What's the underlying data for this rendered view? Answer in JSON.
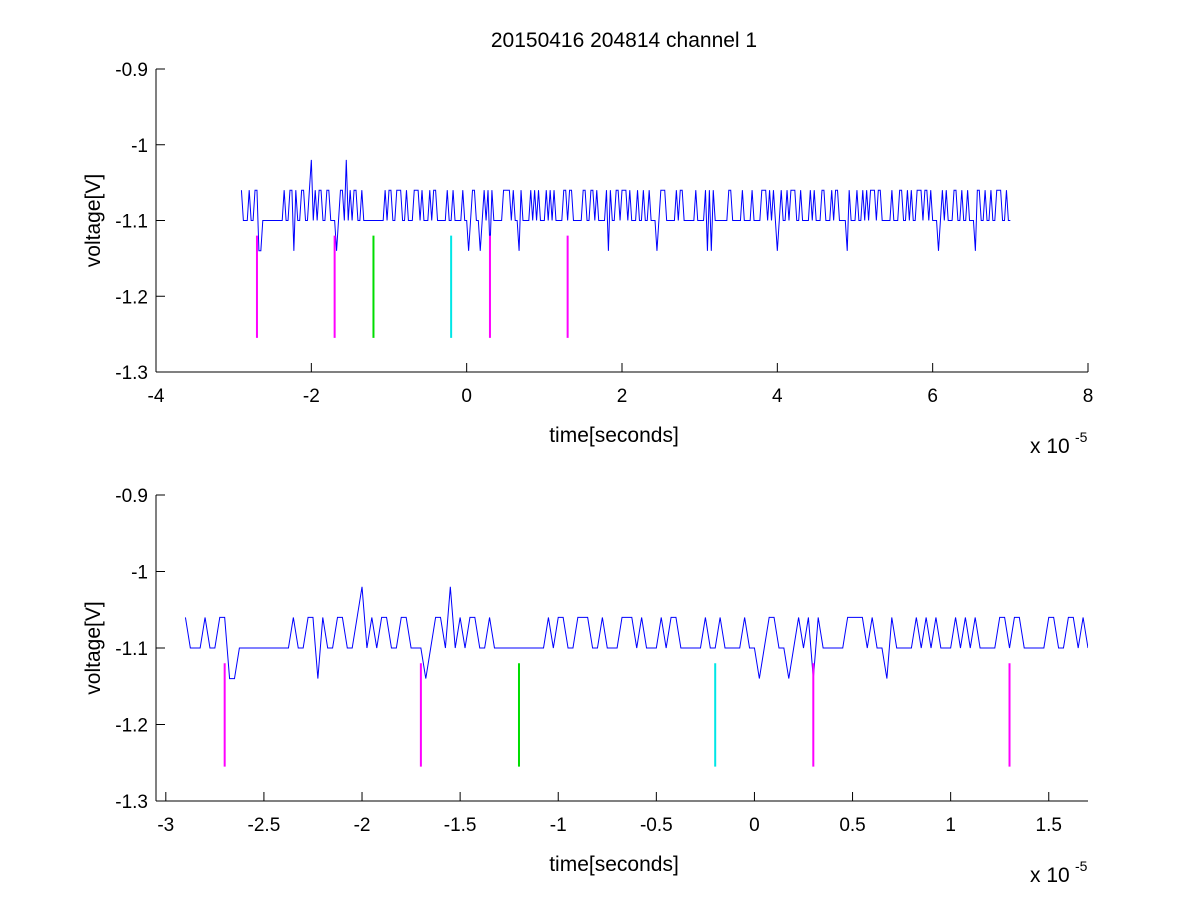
{
  "figure": {
    "title": "20150416 204814 channel 1"
  },
  "colors": {
    "signal": "#0000ff",
    "magenta": "#ff00ff",
    "green": "#00dd00",
    "cyan": "#00e6e6",
    "axis": "#000000"
  },
  "chart_data": [
    {
      "type": "line",
      "title": "20150416 204814 channel 1",
      "xlabel": "time[seconds]",
      "ylabel": "voltage[V]",
      "x_multiplier_label": "x 10",
      "x_multiplier_exponent": "-5",
      "xlim": [
        -4,
        8
      ],
      "ylim": [
        -1.3,
        -0.9
      ],
      "y_reversed": true,
      "xticks": [
        "-4",
        "-2",
        "0",
        "2",
        "4",
        "6",
        "8"
      ],
      "xtick_values": [
        -4,
        -2,
        0,
        2,
        4,
        6,
        8
      ],
      "yticks": [
        "-0.9",
        "-1",
        "-1.1",
        "-1.2",
        "-1.3"
      ],
      "ytick_values": [
        -0.9,
        -1.0,
        -1.1,
        -1.2,
        -1.3
      ],
      "grid": false,
      "series": [
        {
          "levels": [
            -1.1,
            -1.06
          ],
          "x_range": [
            -2.9,
            7.0
          ],
          "baseline": -1.1,
          "high": -1.06,
          "low": -1.14,
          "spikes": [
            {
              "x": -2.0,
              "y": -1.02
            },
            {
              "x": -1.55,
              "y": -1.02
            }
          ]
        }
      ],
      "markers": [
        {
          "x": -2.7,
          "color": "magenta",
          "y_top": -1.12,
          "y_bottom": -1.255
        },
        {
          "x": -1.7,
          "color": "magenta",
          "y_top": -1.12,
          "y_bottom": -1.255
        },
        {
          "x": -1.2,
          "color": "green",
          "y_top": -1.12,
          "y_bottom": -1.255
        },
        {
          "x": -0.2,
          "color": "cyan",
          "y_top": -1.12,
          "y_bottom": -1.255
        },
        {
          "x": 0.3,
          "color": "magenta",
          "y_top": -1.12,
          "y_bottom": -1.255
        },
        {
          "x": 1.3,
          "color": "magenta",
          "y_top": -1.12,
          "y_bottom": -1.255
        }
      ]
    },
    {
      "type": "line",
      "title": "",
      "xlabel": "time[seconds]",
      "ylabel": "voltage[V]",
      "x_multiplier_label": "x 10",
      "x_multiplier_exponent": "-5",
      "xlim": [
        -3.05,
        1.7
      ],
      "ylim": [
        -1.3,
        -0.9
      ],
      "y_reversed": true,
      "xticks": [
        "-3",
        "-2.5",
        "-2",
        "-1.5",
        "-1",
        "-0.5",
        "0",
        "0.5",
        "1",
        "1.5"
      ],
      "xtick_values": [
        -3,
        -2.5,
        -2,
        -1.5,
        -1,
        -0.5,
        0,
        0.5,
        1,
        1.5
      ],
      "yticks": [
        "-0.9",
        "-1",
        "-1.1",
        "-1.2",
        "-1.3"
      ],
      "ytick_values": [
        -0.9,
        -1.0,
        -1.1,
        -1.2,
        -1.3
      ],
      "grid": false,
      "series": [
        {
          "levels": [
            -1.1,
            -1.06
          ],
          "x_range": [
            -2.9,
            1.7
          ],
          "baseline": -1.1,
          "high": -1.06,
          "low": -1.14,
          "spikes": [
            {
              "x": -2.0,
              "y": -1.02
            },
            {
              "x": -1.55,
              "y": -1.02
            }
          ]
        }
      ],
      "markers": [
        {
          "x": -2.7,
          "color": "magenta",
          "y_top": -1.12,
          "y_bottom": -1.255
        },
        {
          "x": -1.7,
          "color": "magenta",
          "y_top": -1.12,
          "y_bottom": -1.255
        },
        {
          "x": -1.2,
          "color": "green",
          "y_top": -1.12,
          "y_bottom": -1.255
        },
        {
          "x": -0.2,
          "color": "cyan",
          "y_top": -1.12,
          "y_bottom": -1.255
        },
        {
          "x": 0.3,
          "color": "magenta",
          "y_top": -1.12,
          "y_bottom": -1.255
        },
        {
          "x": 1.3,
          "color": "magenta",
          "y_top": -1.12,
          "y_bottom": -1.255
        }
      ]
    }
  ]
}
